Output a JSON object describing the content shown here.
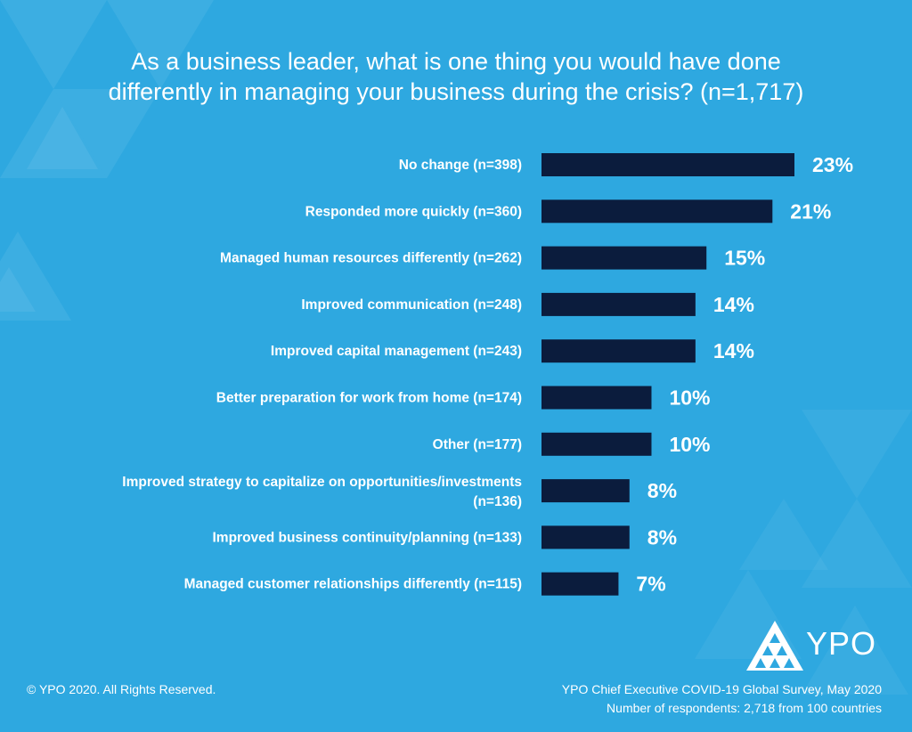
{
  "title_lines": [
    "As a business leader, what is one thing you would have done",
    "differently in managing your business during the crisis? (n=1,717)"
  ],
  "chart_data": {
    "type": "bar",
    "orientation": "horizontal",
    "categories": [
      [
        "No change (n=398)"
      ],
      [
        "Responded more quickly (n=360)"
      ],
      [
        "Managed human resources differently (n=262)"
      ],
      [
        "Improved communication (n=248)"
      ],
      [
        "Improved capital management (n=243)"
      ],
      [
        "Better preparation for work from home (n=174)"
      ],
      [
        "Other (n=177)"
      ],
      [
        "Improved strategy to capitalize on opportunities/investments",
        "(n=136)"
      ],
      [
        "Improved business continuity/planning (n=133)"
      ],
      [
        "Managed customer relationships differently (n=115)"
      ]
    ],
    "values": [
      23,
      21,
      15,
      14,
      14,
      10,
      10,
      8,
      8,
      7
    ],
    "value_labels": [
      "23%",
      "21%",
      "15%",
      "14%",
      "14%",
      "10%",
      "10%",
      "8%",
      "8%",
      "7%"
    ],
    "xlim": [
      0,
      23
    ],
    "bar_color": "#0b1c3d",
    "grid": false
  },
  "footer": {
    "copyright": "© YPO 2020. All Rights Reserved.",
    "source_line1": "YPO Chief Executive COVID-19 Global Survey, May 2020",
    "source_line2": "Number of respondents: 2,718 from 100 countries"
  },
  "logo": {
    "text": "YPO",
    "icon": "ypo-triangle-logo-icon"
  },
  "colors": {
    "background": "#2ea8e0",
    "bar": "#0b1c3d",
    "text": "#ffffff"
  }
}
